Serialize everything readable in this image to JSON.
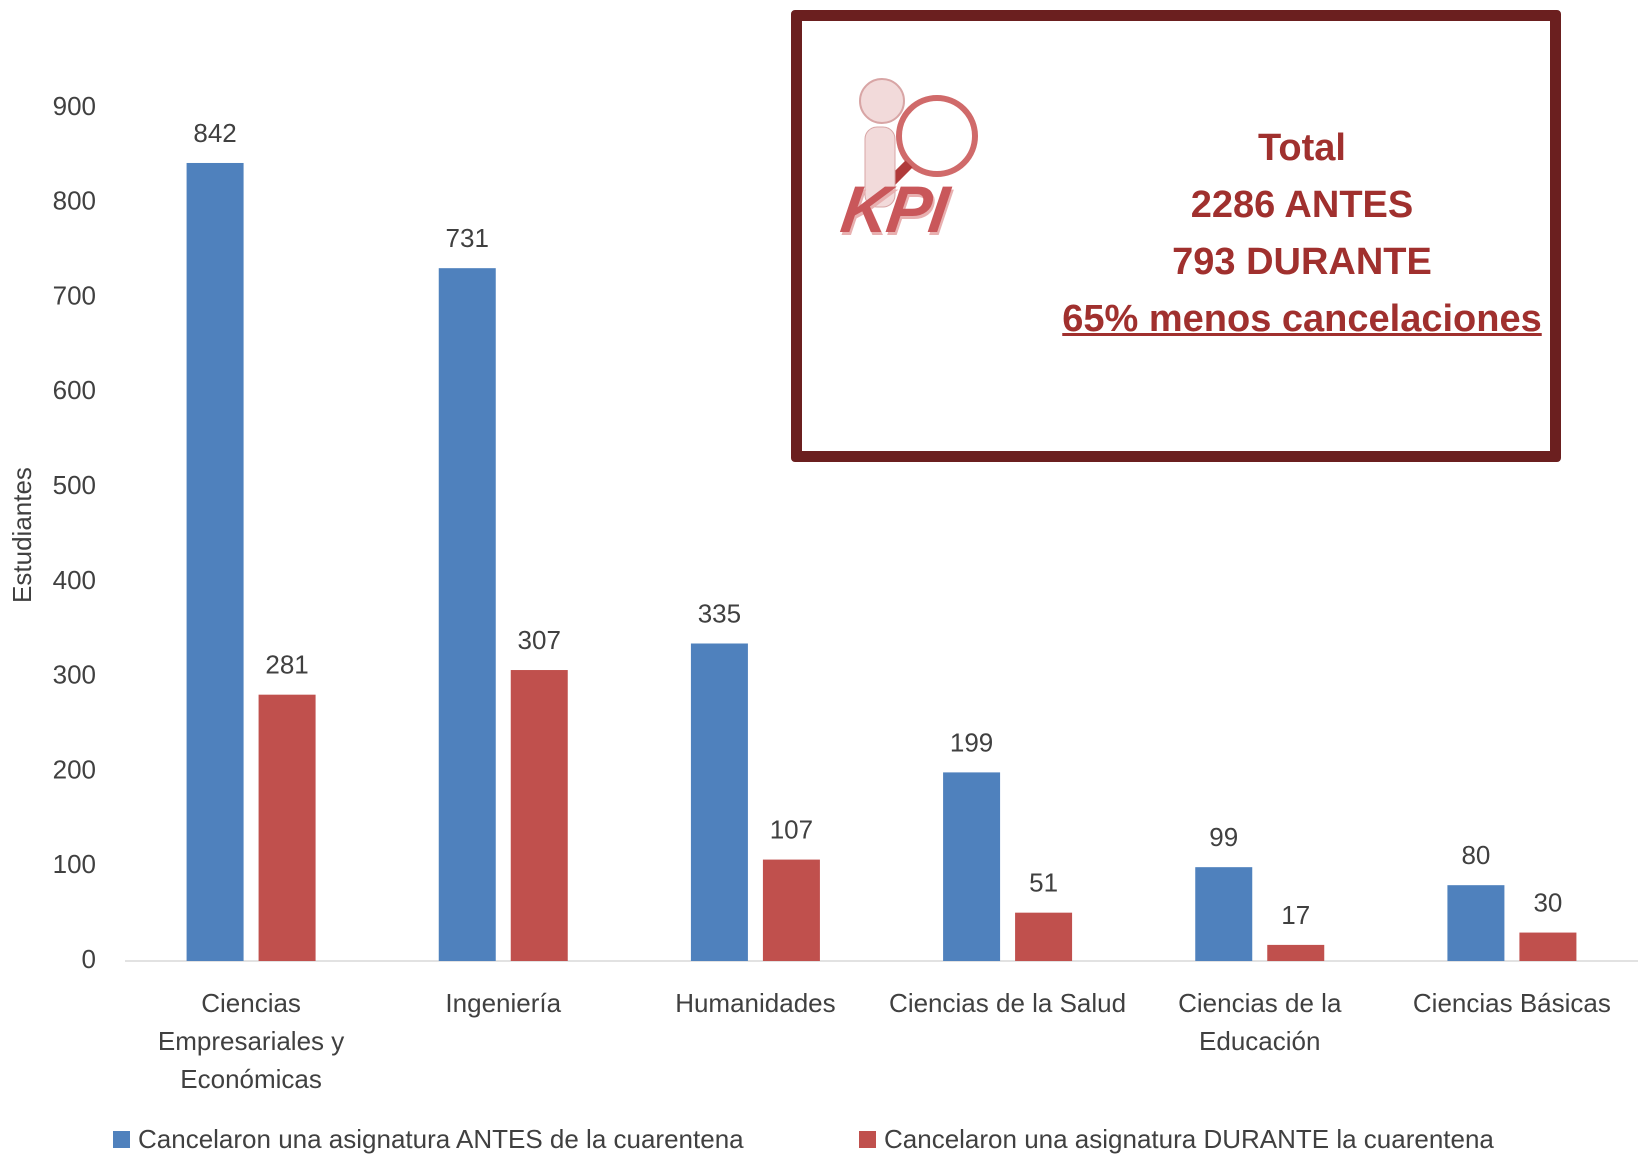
{
  "chart_data": {
    "type": "bar",
    "y_axis_label": "Estudiantes",
    "categories": [
      "Ciencias Empresariales y Económicas",
      "Ingeniería",
      "Humanidades",
      "Ciencias de la Salud",
      "Ciencias de la Educación",
      "Ciencias Básicas"
    ],
    "series": [
      {
        "name": "Cancelaron una asignatura ANTES de la cuarentena",
        "color": "#4f81bd",
        "values": [
          842,
          731,
          335,
          199,
          99,
          80
        ]
      },
      {
        "name": "Cancelaron una asignatura DURANTE la cuarentena",
        "color": "#c0504d",
        "values": [
          281,
          307,
          107,
          51,
          17,
          30
        ]
      }
    ],
    "ylim": [
      0,
      900
    ],
    "yticks": [
      0,
      100,
      200,
      300,
      400,
      500,
      600,
      700,
      800,
      900
    ],
    "grid": false,
    "legend": "bottom",
    "kpi_box": {
      "badge": "KPI",
      "lines": [
        "Total",
        "2286 ANTES",
        "793 DURANTE",
        "65% menos cancelaciones"
      ]
    }
  }
}
